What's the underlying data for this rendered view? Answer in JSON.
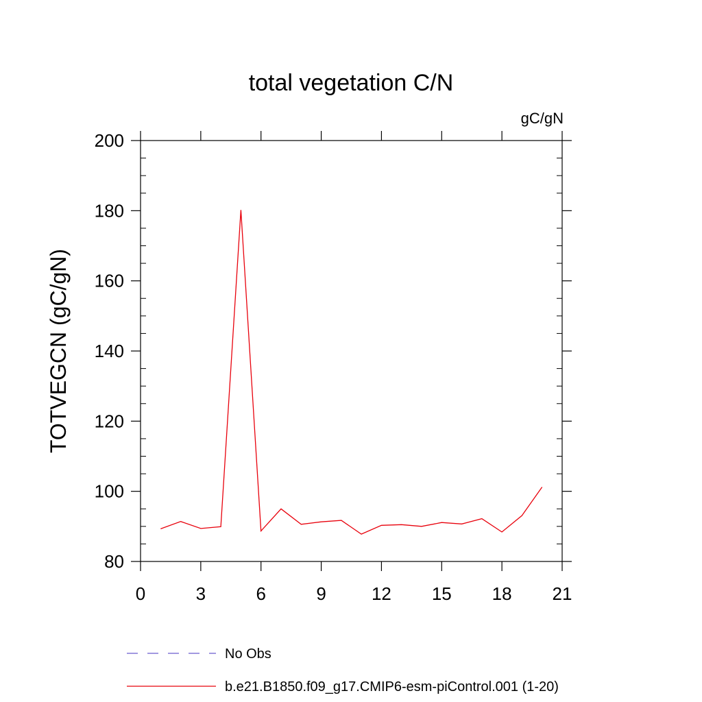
{
  "chart_data": {
    "type": "line",
    "title": "total vegetation C/N",
    "units_label": "gC/gN",
    "ylabel": "TOTVEGCN  (gC/gN)",
    "xlabel": "",
    "xlim": [
      0,
      21
    ],
    "ylim": [
      80,
      200
    ],
    "x_ticks": [
      0,
      3,
      6,
      9,
      12,
      15,
      18,
      21
    ],
    "y_ticks": [
      80,
      100,
      120,
      140,
      160,
      180,
      200
    ],
    "grid": false,
    "legend_position": "bottom",
    "series": [
      {
        "name": "b.e21.B1850.f09_g17.CMIP6-esm-piControl.001 (1-20)",
        "color": "#e8000b",
        "style": "solid",
        "x": [
          1,
          2,
          3,
          4,
          5,
          6,
          7,
          8,
          9,
          10,
          11,
          12,
          13,
          14,
          15,
          16,
          17,
          18,
          19,
          20
        ],
        "values": [
          89.3,
          91.4,
          89.4,
          89.9,
          180.2,
          88.7,
          95.0,
          90.6,
          91.3,
          91.7,
          87.8,
          90.3,
          90.5,
          90.0,
          91.1,
          90.7,
          92.2,
          88.4,
          93.1,
          101.2
        ]
      }
    ],
    "legend": [
      {
        "label": "No Obs",
        "color": "#6a5acd",
        "style": "dashed"
      },
      {
        "label": "b.e21.B1850.f09_g17.CMIP6-esm-piControl.001 (1-20)",
        "color": "#e8000b",
        "style": "solid"
      }
    ]
  }
}
